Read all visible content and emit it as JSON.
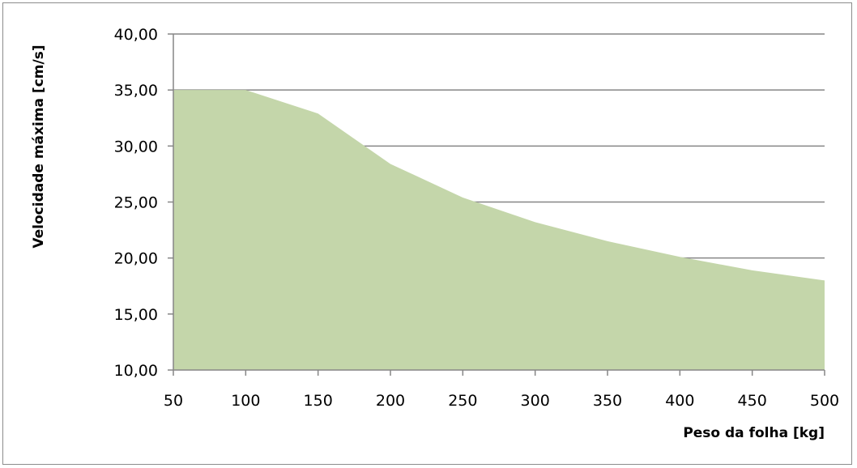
{
  "chart_data": {
    "type": "area",
    "xlabel": "Peso da folha [kg]",
    "ylabel": "Velocidade máxima [cm/s]",
    "x": [
      50,
      100,
      150,
      200,
      250,
      300,
      350,
      400,
      450,
      500
    ],
    "x_tick_labels": [
      "50",
      "100",
      "150",
      "200",
      "250",
      "300",
      "350",
      "400",
      "450",
      "500"
    ],
    "series": [
      {
        "values": [
          35.0,
          35.0,
          32.9,
          28.4,
          25.4,
          23.2,
          21.5,
          20.1,
          18.9,
          18.0
        ]
      }
    ],
    "ylim": [
      10,
      40
    ],
    "y_ticks": [
      10,
      15,
      20,
      25,
      30,
      35,
      40
    ],
    "y_tick_labels": [
      "10,00",
      "15,00",
      "20,00",
      "25,00",
      "30,00",
      "35,00",
      "40,00"
    ],
    "xlim": [
      50,
      500
    ],
    "grid": "horizontal",
    "legend": "none",
    "colors": {
      "fill": "#c4d6aa",
      "grid": "#868686",
      "axis": "#868686",
      "frame": "#8c8c8c"
    }
  }
}
